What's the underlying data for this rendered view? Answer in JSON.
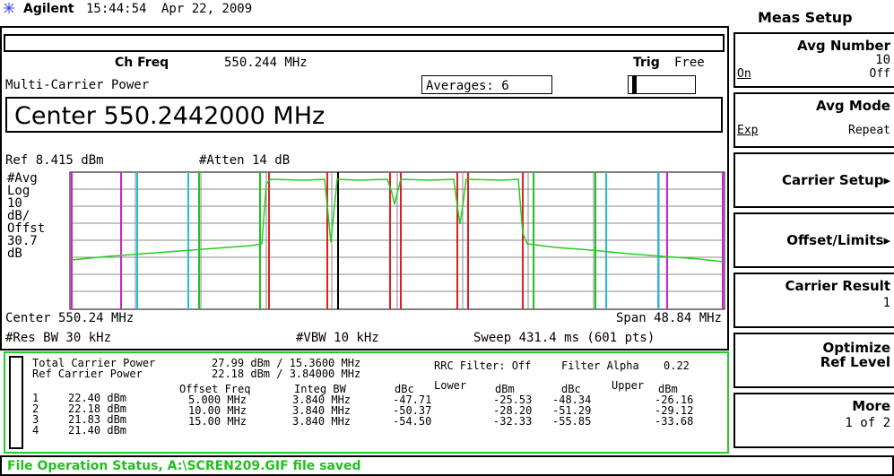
{
  "header": {
    "brand": "Agilent",
    "time": "15:44:54",
    "date": "Apr 22, 2009"
  },
  "meas": {
    "ch_freq_label": "Ch Freq",
    "ch_freq": "550.244 MHz",
    "trig_label": "Trig",
    "trig": "Free",
    "mode": "Multi-Carrier Power",
    "averages": "Averages: 6",
    "center_entry": "Center 550.2442000 MHz"
  },
  "display": {
    "ref": "Ref 8.415 dBm",
    "atten": "#Atten 14 dB",
    "left_labels": [
      "#Avg",
      "Log",
      "10",
      "dB/",
      "Offst",
      "30.7",
      "dB"
    ],
    "center": "Center 550.24 MHz",
    "span": "Span 48.84 MHz",
    "res_bw": "#Res BW 30 kHz",
    "vbw": "#VBW 10 kHz",
    "sweep": "Sweep 431.4 ms (601 pts)"
  },
  "results": {
    "total_label": "Total Carrier Power",
    "total": "27.99 dBm / 15.3600 MHz",
    "ref_label": "Ref Carrier Power",
    "ref": "22.18 dBm / 3.84000 MHz",
    "filter": "RRC Filter: Off",
    "alpha_label": "Filter Alpha",
    "alpha": "0.22",
    "headers": [
      "Offset Freq",
      "Integ BW",
      "dBc",
      "Lower",
      "dBm",
      "dBc",
      "Upper",
      "dBm"
    ],
    "carriers": [
      [
        "1",
        "22.40 dBm"
      ],
      [
        "2",
        "22.18 dBm"
      ],
      [
        "3",
        "21.83 dBm"
      ],
      [
        "4",
        "21.40 dBm"
      ]
    ],
    "offsets": [
      [
        "5.000 MHz",
        "3.840 MHz",
        "-47.71",
        "-25.53",
        "-48.34",
        "-26.16"
      ],
      [
        "10.00 MHz",
        "3.840 MHz",
        "-50.37",
        "-28.20",
        "-51.29",
        "-29.12"
      ],
      [
        "15.00 MHz",
        "3.840 MHz",
        "-54.50",
        "-32.33",
        "-55.85",
        "-33.68"
      ]
    ]
  },
  "softkeys": {
    "title": "Meas Setup",
    "keys": [
      {
        "label": "Avg Number",
        "value": "10",
        "left": "On",
        "right": "Off"
      },
      {
        "label": "Avg Mode",
        "left": "Exp",
        "right": "Repeat"
      },
      {
        "label": "Carrier Setup▸"
      },
      {
        "label": "Offset/Limits▸"
      },
      {
        "label": "Carrier Result",
        "value": "1"
      },
      {
        "label": "Optimize",
        "label2": "Ref Level"
      },
      {
        "label": "More",
        "value": "1 of 2"
      }
    ]
  },
  "status": "File Operation Status, A:\\SCREN209.GIF file saved"
}
